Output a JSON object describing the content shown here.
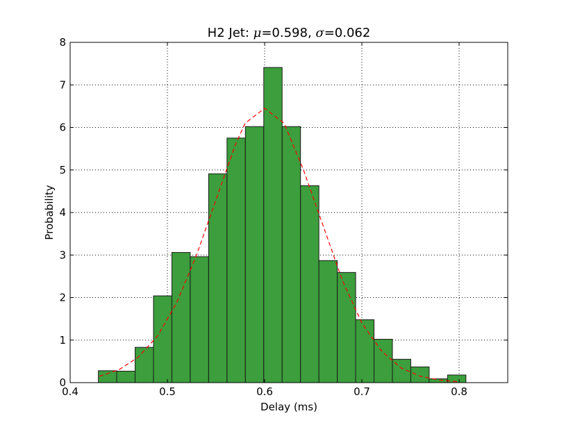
{
  "chart_data": {
    "type": "bar",
    "title_prefix": "H2 Jet: ",
    "title_mu_symbol": "μ",
    "title_mu_value": "=0.598",
    "title_sep": ", ",
    "title_sigma_symbol": "σ",
    "title_sigma_value": "=0.062",
    "xlabel": "Delay (ms)",
    "ylabel": "Probability",
    "xlim": [
      0.4,
      0.85
    ],
    "ylim": [
      0,
      8
    ],
    "xticks": [
      0.4,
      0.5,
      0.6,
      0.7,
      0.8
    ],
    "xtick_labels": [
      "0.4",
      "0.5",
      "0.6",
      "0.7",
      "0.8"
    ],
    "yticks": [
      0,
      1,
      2,
      3,
      4,
      5,
      6,
      7,
      8
    ],
    "ytick_labels": [
      "0",
      "1",
      "2",
      "3",
      "4",
      "5",
      "6",
      "7",
      "8"
    ],
    "grid": true,
    "bar_color": "#3c9e3c",
    "bar_edge_color": "#1a1a1a",
    "fit_line_color": "#ff0000",
    "bin_edges": [
      0.429,
      0.4479,
      0.4668,
      0.4857,
      0.5046,
      0.5235,
      0.5424,
      0.5613,
      0.5802,
      0.5991,
      0.618,
      0.6369,
      0.6558,
      0.6747,
      0.6936,
      0.7125,
      0.7314,
      0.7503,
      0.7692,
      0.7881,
      0.807
    ],
    "values": [
      0.28,
      0.27,
      0.83,
      2.04,
      3.06,
      2.96,
      4.91,
      5.75,
      6.02,
      7.41,
      6.02,
      4.63,
      2.87,
      2.59,
      1.48,
      1.02,
      0.55,
      0.37,
      0.09,
      0.18
    ],
    "fit_curve": {
      "x": [
        0.43,
        0.45,
        0.47,
        0.49,
        0.51,
        0.53,
        0.55,
        0.57,
        0.58,
        0.6,
        0.62,
        0.64,
        0.66,
        0.68,
        0.7,
        0.72,
        0.74,
        0.76,
        0.78,
        0.8
      ],
      "y": [
        0.15,
        0.3,
        0.6,
        1.1,
        1.9,
        3.0,
        4.3,
        5.6,
        6.1,
        6.45,
        6.1,
        5.0,
        3.7,
        2.4,
        1.4,
        0.75,
        0.35,
        0.15,
        0.06,
        0.02
      ]
    }
  }
}
